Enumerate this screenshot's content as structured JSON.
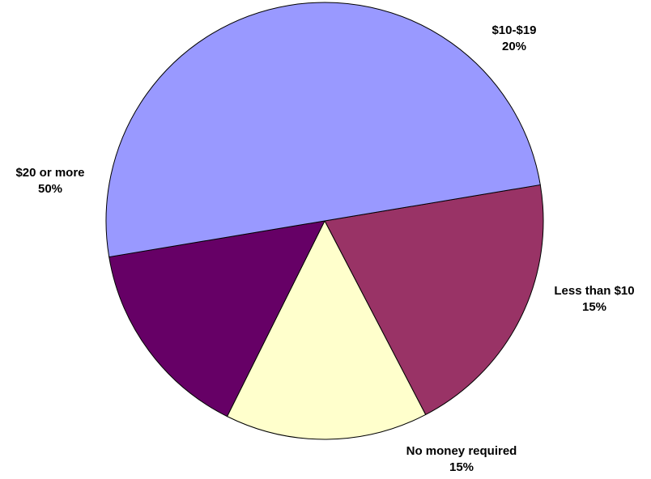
{
  "chart_data": {
    "type": "pie",
    "title": "",
    "slices": [
      {
        "label": "$10-$19",
        "percent_label": "20%",
        "value": 20,
        "color": "#993366"
      },
      {
        "label": "Less than $10",
        "percent_label": "15%",
        "value": 15,
        "color": "#FFFFCC"
      },
      {
        "label": "No money required",
        "percent_label": "15%",
        "value": 15,
        "color": "#660066"
      },
      {
        "label": "$20 or more",
        "percent_label": "50%",
        "value": 50,
        "color": "#9999FF"
      }
    ]
  }
}
